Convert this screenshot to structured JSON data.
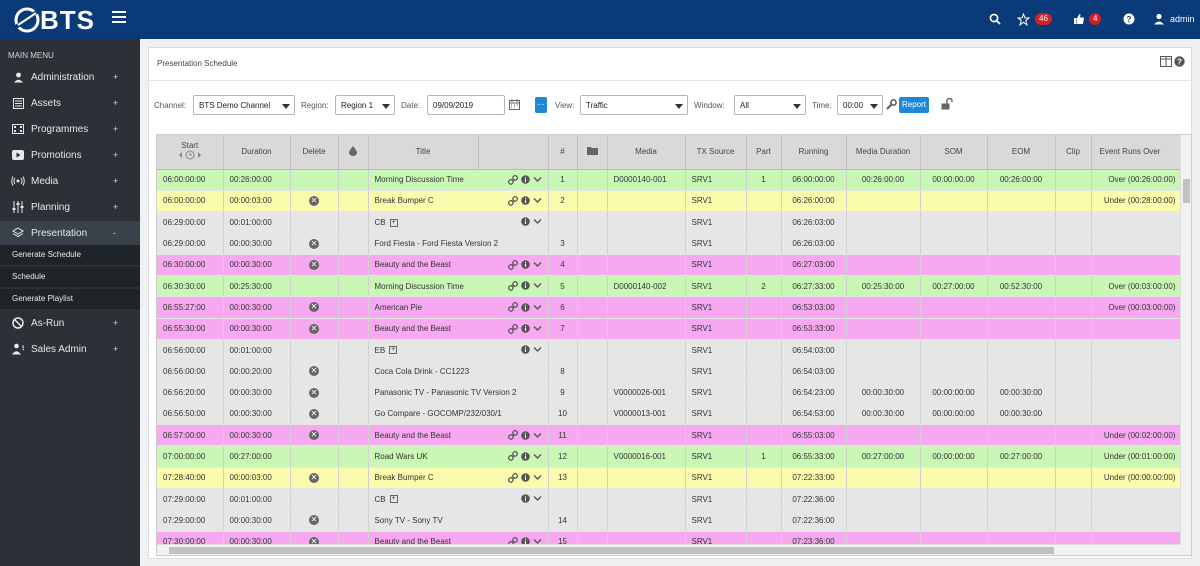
{
  "app": {
    "brand": "BTS",
    "badges": {
      "alerts": "46",
      "notifications": "4"
    },
    "user": "admin"
  },
  "sidebar": {
    "heading": "MAIN MENU",
    "items": [
      {
        "label": "Administration",
        "marker": "+"
      },
      {
        "label": "Assets",
        "marker": "+"
      },
      {
        "label": "Programmes",
        "marker": "+"
      },
      {
        "label": "Promotions",
        "marker": "+"
      },
      {
        "label": "Media",
        "marker": "+"
      },
      {
        "label": "Planning",
        "marker": "+"
      },
      {
        "label": "Presentation",
        "marker": "-"
      },
      {
        "label": "As-Run",
        "marker": "+"
      },
      {
        "label": "Sales Admin",
        "marker": "+"
      }
    ],
    "subitems": [
      "Generate Schedule",
      "Schedule",
      "Generate Playlist"
    ]
  },
  "page": {
    "title": "Presentation Schedule"
  },
  "filters": {
    "channel_label": "Channel:",
    "channel_value": "BTS Demo Channel",
    "region_label": "Region:",
    "region_value": "Region 1",
    "date_label": "Date:",
    "date_value": "09/09/2019",
    "dots": "...",
    "view_label": "View:",
    "view_value": "Traffic",
    "window_label": "Window:",
    "window_value": "All",
    "time_label": "Time:",
    "time_value": "00:00",
    "report_label": "Report"
  },
  "table": {
    "columns": [
      "Start",
      "Duration",
      "Delete",
      "",
      "Title",
      "",
      "#",
      "",
      "Media",
      "TX Source",
      "Part",
      "Running",
      "Media Duration",
      "SOM",
      "EOM",
      "Clip",
      "Event Runs Over"
    ],
    "rows": [
      {
        "color": "green",
        "start": "06:00:00:00",
        "duration": "00:26:00:00",
        "delete": false,
        "title": "Morning Discussion Time",
        "icons": "full",
        "num": "1",
        "media": "D0000140-001",
        "tx": "SRV1",
        "part": "1",
        "running": "06:00:00:00",
        "mdur": "00:26:00:00",
        "som": "00:00:00:00",
        "eom": "00:26:00:00",
        "clip": "",
        "over": "Over (00:26:00:00)"
      },
      {
        "color": "yellow",
        "start": "06:00:00:00",
        "duration": "00:00:03:00",
        "delete": true,
        "title": "Break Bumper C",
        "icons": "full",
        "num": "2",
        "media": "",
        "tx": "SRV1",
        "part": "",
        "running": "06:26:00:00",
        "mdur": "",
        "som": "",
        "eom": "",
        "clip": "",
        "over": "Under (00:28:00:00)"
      },
      {
        "color": "grey",
        "start": "06:29:00:00",
        "duration": "00:01:00:00",
        "delete": false,
        "title": "CB",
        "expand": true,
        "icons": "partial",
        "num": "",
        "media": "",
        "tx": "SRV1",
        "part": "",
        "running": "06:26:03:00",
        "mdur": "",
        "som": "",
        "eom": "",
        "clip": "",
        "over": ""
      },
      {
        "color": "grey",
        "start": "06:29:00:00",
        "duration": "00:00:30:00",
        "delete": true,
        "title": "Ford Fiesta - Ford Fiesta Version 2",
        "icons": "none",
        "num": "3",
        "media": "",
        "tx": "SRV1",
        "part": "",
        "running": "06:26:03:00",
        "mdur": "",
        "som": "",
        "eom": "",
        "clip": "",
        "over": ""
      },
      {
        "color": "pink",
        "start": "06:30:00:00",
        "duration": "00:00:30:00",
        "delete": true,
        "title": "Beauty and the Beast",
        "icons": "full",
        "num": "4",
        "media": "",
        "tx": "SRV1",
        "part": "",
        "running": "06:27:03:00",
        "mdur": "",
        "som": "",
        "eom": "",
        "clip": "",
        "over": ""
      },
      {
        "color": "green",
        "start": "06:30:30:00",
        "duration": "00:25:30:00",
        "delete": false,
        "title": "Morning Discussion Time",
        "icons": "full",
        "num": "5",
        "media": "D0000140-002",
        "tx": "SRV1",
        "part": "2",
        "running": "06:27:33:00",
        "mdur": "00:25:30:00",
        "som": "00:27:00:00",
        "eom": "00:52:30:00",
        "clip": "",
        "over": "Over (00:03:00:00)"
      },
      {
        "color": "pink",
        "start": "06:55:27:00",
        "duration": "00:00:30:00",
        "delete": true,
        "title": "American Pie",
        "icons": "full",
        "num": "6",
        "media": "",
        "tx": "SRV1",
        "part": "",
        "running": "06:53:03:00",
        "mdur": "",
        "som": "",
        "eom": "",
        "clip": "",
        "over": "Over (00:03:00:00)"
      },
      {
        "color": "pink",
        "start": "06:55:30:00",
        "duration": "00:00:30:00",
        "delete": true,
        "title": "Beauty and the Beast",
        "icons": "full",
        "num": "7",
        "media": "",
        "tx": "SRV1",
        "part": "",
        "running": "06:53:33:00",
        "mdur": "",
        "som": "",
        "eom": "",
        "clip": "",
        "over": ""
      },
      {
        "color": "grey",
        "start": "06:56:00:00",
        "duration": "00:01:00:00",
        "delete": false,
        "title": "EB",
        "expand": true,
        "icons": "partial",
        "num": "",
        "media": "",
        "tx": "SRV1",
        "part": "",
        "running": "06:54:03:00",
        "mdur": "",
        "som": "",
        "eom": "",
        "clip": "",
        "over": ""
      },
      {
        "color": "grey",
        "start": "06:56:00:00",
        "duration": "00:00:20:00",
        "delete": true,
        "title": "Coca Cola Drink - CC1223",
        "icons": "none",
        "num": "8",
        "media": "",
        "tx": "SRV1",
        "part": "",
        "running": "06:54:03:00",
        "mdur": "",
        "som": "",
        "eom": "",
        "clip": "",
        "over": ""
      },
      {
        "color": "grey",
        "start": "06:56:20:00",
        "duration": "00:00:30:00",
        "delete": true,
        "title": "Panasonic TV - Panasonic TV Version 2",
        "icons": "none",
        "num": "9",
        "media": "V0000026-001",
        "tx": "SRV1",
        "part": "",
        "running": "06:54:23:00",
        "mdur": "00:00:30:00",
        "som": "00:00:00:00",
        "eom": "00:00:30:00",
        "clip": "",
        "over": ""
      },
      {
        "color": "grey",
        "start": "06:56:50:00",
        "duration": "00:00:30:00",
        "delete": true,
        "title": "Go Compare - GOCOMP/232/030/1",
        "icons": "none",
        "num": "10",
        "media": "V0000013-001",
        "tx": "SRV1",
        "part": "",
        "running": "06:54:53:00",
        "mdur": "00:00:30:00",
        "som": "00:00:00:00",
        "eom": "00:00:30:00",
        "clip": "",
        "over": ""
      },
      {
        "color": "pink",
        "start": "06:57:00:00",
        "duration": "00:00:30:00",
        "delete": true,
        "title": "Beauty and the Beast",
        "icons": "full",
        "num": "11",
        "media": "",
        "tx": "SRV1",
        "part": "",
        "running": "06:55:03:00",
        "mdur": "",
        "som": "",
        "eom": "",
        "clip": "",
        "over": "Under (00:02:00:00)"
      },
      {
        "color": "green",
        "start": "07:00:00:00",
        "duration": "00:27:00:00",
        "delete": false,
        "title": "Road Wars UK",
        "icons": "full",
        "num": "12",
        "media": "V0000016-001",
        "tx": "SRV1",
        "part": "1",
        "running": "06:55:33:00",
        "mdur": "00:27:00:00",
        "som": "00:00:00:00",
        "eom": "00:27:00:00",
        "clip": "",
        "over": "Under (00:01:00:00)"
      },
      {
        "color": "yellow",
        "start": "07:28:40:00",
        "duration": "00:00:03:00",
        "delete": true,
        "title": "Break Bumper C",
        "icons": "full",
        "num": "13",
        "media": "",
        "tx": "SRV1",
        "part": "",
        "running": "07:22:33:00",
        "mdur": "",
        "som": "",
        "eom": "",
        "clip": "",
        "over": "Under (00:00:00:00)"
      },
      {
        "color": "grey",
        "start": "07:29:00:00",
        "duration": "00:01:00:00",
        "delete": false,
        "title": "CB",
        "expand": true,
        "icons": "partial",
        "num": "",
        "media": "",
        "tx": "SRV1",
        "part": "",
        "running": "07:22:36:00",
        "mdur": "",
        "som": "",
        "eom": "",
        "clip": "",
        "over": ""
      },
      {
        "color": "grey",
        "start": "07:29:00:00",
        "duration": "00:00:30:00",
        "delete": true,
        "title": "Sony TV - Sony TV",
        "icons": "none",
        "num": "14",
        "media": "",
        "tx": "SRV1",
        "part": "",
        "running": "07:22:36:00",
        "mdur": "",
        "som": "",
        "eom": "",
        "clip": "",
        "over": ""
      },
      {
        "color": "pink",
        "start": "07:30:00:00",
        "duration": "00:00:30:00",
        "delete": true,
        "title": "Beauty and the Beast",
        "icons": "full",
        "num": "15",
        "media": "",
        "tx": "SRV1",
        "part": "",
        "running": "07:23:36:00",
        "mdur": "",
        "som": "",
        "eom": "",
        "clip": "",
        "over": ""
      }
    ]
  }
}
